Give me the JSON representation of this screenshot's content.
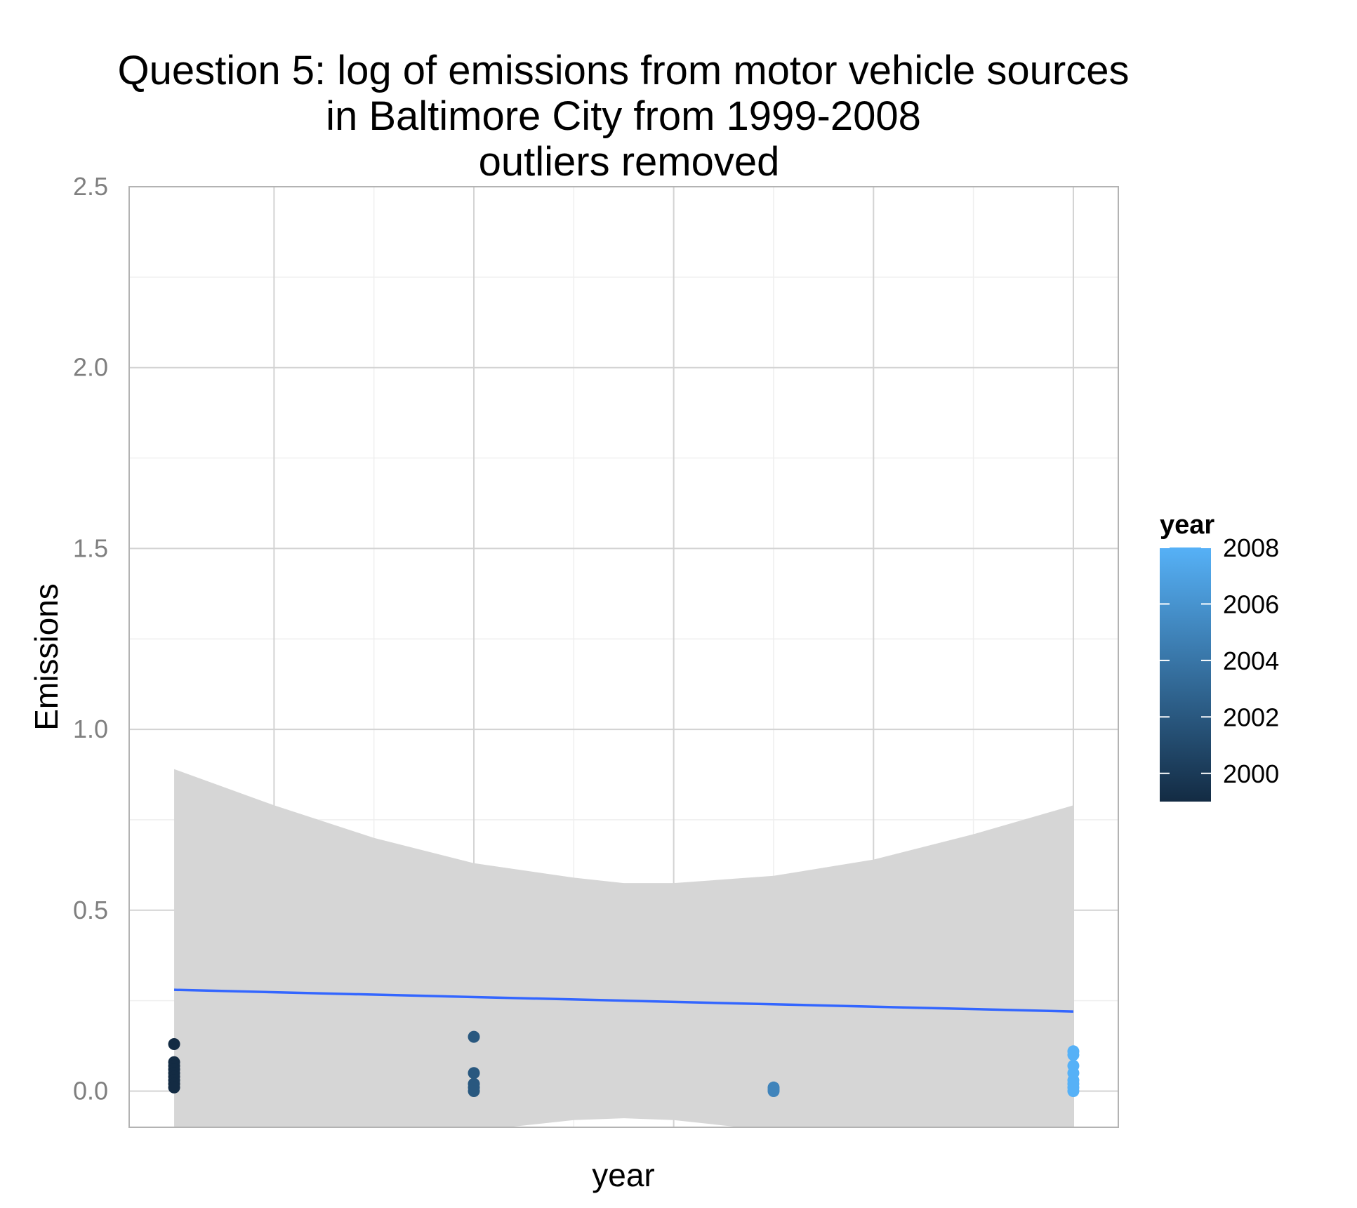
{
  "chart_data": {
    "type": "scatter",
    "title_lines": [
      "Question 5: log of emissions from motor vehicle sources",
      "in Baltimore City from 1999-2008",
      "outliers removed"
    ],
    "xlabel": "year",
    "ylabel": "Emissions",
    "xlim": [
      1998.55,
      2008.45
    ],
    "ylim": [
      -0.1,
      2.5
    ],
    "y_ticks": [
      0.0,
      0.5,
      1.0,
      1.5,
      2.0,
      2.5
    ],
    "y_tick_labels": [
      "0.0",
      "0.5",
      "1.0",
      "1.5",
      "2.0",
      "2.5"
    ],
    "x_major_grid": [
      2000,
      2002,
      2004,
      2006,
      2008
    ],
    "grid": true,
    "points": [
      {
        "x": 1999,
        "y": 0.13
      },
      {
        "x": 1999,
        "y": 0.08
      },
      {
        "x": 1999,
        "y": 0.07
      },
      {
        "x": 1999,
        "y": 0.06
      },
      {
        "x": 1999,
        "y": 0.05
      },
      {
        "x": 1999,
        "y": 0.04
      },
      {
        "x": 1999,
        "y": 0.03
      },
      {
        "x": 1999,
        "y": 0.02
      },
      {
        "x": 1999,
        "y": 0.01
      },
      {
        "x": 2002,
        "y": 0.15
      },
      {
        "x": 2002,
        "y": 0.05
      },
      {
        "x": 2002,
        "y": 0.02
      },
      {
        "x": 2002,
        "y": 0.01
      },
      {
        "x": 2002,
        "y": 0.0
      },
      {
        "x": 2005,
        "y": 0.01
      },
      {
        "x": 2005,
        "y": 0.005
      },
      {
        "x": 2005,
        "y": 0.0
      },
      {
        "x": 2008,
        "y": 0.11
      },
      {
        "x": 2008,
        "y": 0.1
      },
      {
        "x": 2008,
        "y": 0.07
      },
      {
        "x": 2008,
        "y": 0.05
      },
      {
        "x": 2008,
        "y": 0.03
      },
      {
        "x": 2008,
        "y": 0.02
      },
      {
        "x": 2008,
        "y": 0.01
      },
      {
        "x": 2008,
        "y": 0.0
      }
    ],
    "smooth_line": {
      "x": [
        1999,
        2008
      ],
      "y": [
        0.28,
        0.22
      ]
    },
    "confidence_band": {
      "x": [
        1999,
        2000,
        2001,
        2002,
        2003,
        2003.5,
        2004,
        2005,
        2006,
        2007,
        2008
      ],
      "upper": [
        0.89,
        0.79,
        0.7,
        0.63,
        0.59,
        0.575,
        0.575,
        0.595,
        0.64,
        0.71,
        0.79
      ],
      "lower": [
        -0.33,
        -0.23,
        -0.15,
        -0.11,
        -0.08,
        -0.075,
        -0.08,
        -0.11,
        -0.16,
        -0.23,
        -0.33
      ]
    },
    "legend": {
      "title": "year",
      "placement": "right",
      "range": [
        1999,
        2008
      ],
      "ticks": [
        2000,
        2002,
        2004,
        2006,
        2008
      ],
      "tick_labels": [
        "2000",
        "2002",
        "2004",
        "2006",
        "2008"
      ],
      "color_low": "#132B43",
      "color_high": "#56B1F7"
    },
    "colors": {
      "smooth_line": "#3366FF",
      "band": "#d6d6d6",
      "grid_major": "#d3d3d3",
      "grid_minor": "#efefef",
      "panel_border": "#b3b3b3"
    }
  }
}
